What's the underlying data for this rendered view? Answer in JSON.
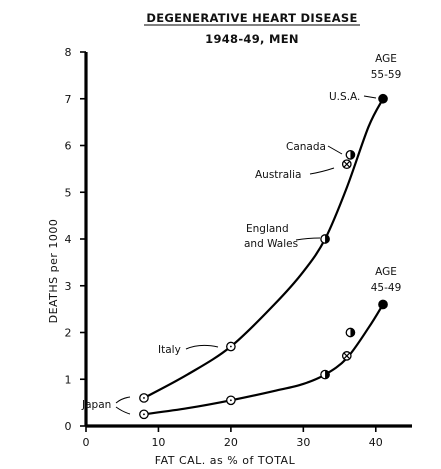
{
  "chart_data": {
    "type": "scatter",
    "title": "DEGENERATIVE HEART DISEASE",
    "subtitle": "1948-49, MEN",
    "xlabel": "FAT CAL. as % of TOTAL",
    "ylabel": "DEATHS per 1000",
    "xlim": [
      0,
      45
    ],
    "ylim": [
      0,
      8
    ],
    "x_ticks": [
      0,
      10,
      20,
      30,
      40
    ],
    "y_ticks": [
      0,
      1,
      2,
      3,
      4,
      5,
      6,
      7,
      8
    ],
    "grid": false,
    "series": [
      {
        "name": "AGE 55-59",
        "label_lines": [
          "AGE",
          "55-59"
        ],
        "points": [
          {
            "country": "Japan",
            "x": 8,
            "y": 0.6,
            "marker": "open-circle"
          },
          {
            "country": "Italy",
            "x": 20,
            "y": 1.7,
            "marker": "open-circle"
          },
          {
            "country": "England and Wales",
            "x": 33,
            "y": 4.0,
            "marker": "half-circle"
          },
          {
            "country": "Australia",
            "x": 36,
            "y": 5.6,
            "marker": "crossed-circle"
          },
          {
            "country": "Canada",
            "x": 36.5,
            "y": 5.8,
            "marker": "half-circle"
          },
          {
            "country": "U.S.A.",
            "x": 41,
            "y": 7.0,
            "marker": "filled-circle"
          }
        ],
        "curve": [
          [
            8,
            0.6
          ],
          [
            14,
            1.1
          ],
          [
            20,
            1.7
          ],
          [
            26,
            2.6
          ],
          [
            30,
            3.3
          ],
          [
            33,
            4.0
          ],
          [
            36,
            5.1
          ],
          [
            39,
            6.4
          ],
          [
            41,
            7.0
          ]
        ]
      },
      {
        "name": "AGE 45-49",
        "label_lines": [
          "AGE",
          "45-49"
        ],
        "points": [
          {
            "country": "Japan",
            "x": 8,
            "y": 0.25,
            "marker": "open-circle"
          },
          {
            "country": "Italy",
            "x": 20,
            "y": 0.55,
            "marker": "open-circle"
          },
          {
            "country": "England and Wales",
            "x": 33,
            "y": 1.1,
            "marker": "half-circle"
          },
          {
            "country": "Australia",
            "x": 36,
            "y": 1.5,
            "marker": "crossed-circle"
          },
          {
            "country": "Canada",
            "x": 36.5,
            "y": 2.0,
            "marker": "half-circle"
          },
          {
            "country": "U.S.A.",
            "x": 41,
            "y": 2.6,
            "marker": "filled-circle"
          }
        ],
        "curve": [
          [
            8,
            0.25
          ],
          [
            14,
            0.38
          ],
          [
            20,
            0.55
          ],
          [
            26,
            0.75
          ],
          [
            30,
            0.9
          ],
          [
            33,
            1.1
          ],
          [
            36,
            1.45
          ],
          [
            39,
            2.1
          ],
          [
            41,
            2.6
          ]
        ]
      }
    ],
    "annotations": [
      {
        "text": "U.S.A.",
        "lines": [
          "U.S.A."
        ]
      },
      {
        "text": "Canada",
        "lines": [
          "Canada"
        ]
      },
      {
        "text": "Australia",
        "lines": [
          "Australia"
        ]
      },
      {
        "text": "England and Wales",
        "lines": [
          "England",
          "and Wales"
        ]
      },
      {
        "text": "Italy",
        "lines": [
          "Italy"
        ]
      },
      {
        "text": "Japan",
        "lines": [
          "Japan"
        ]
      }
    ]
  }
}
